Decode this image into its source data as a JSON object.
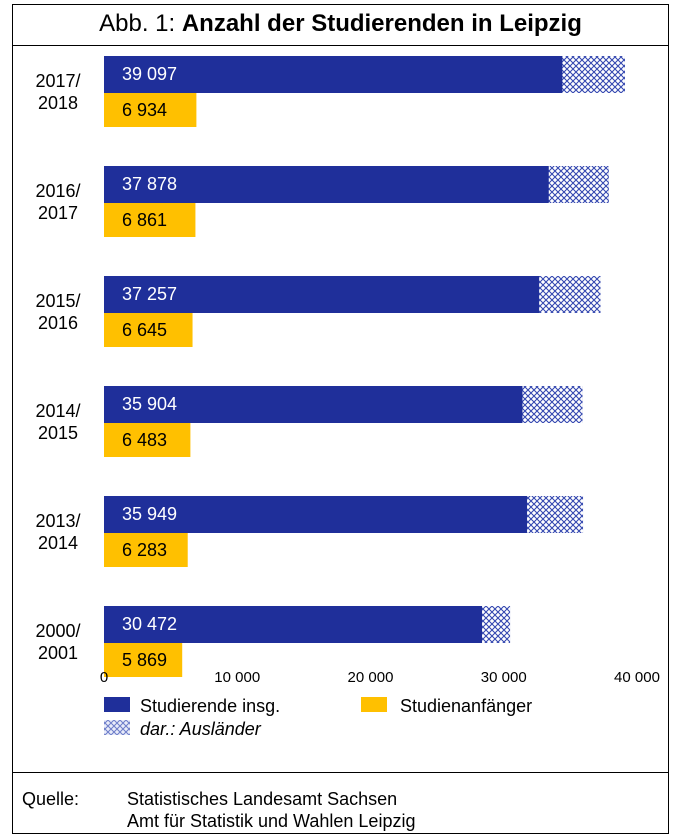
{
  "title": {
    "prefix": "Abb. 1: ",
    "main": "Anzahl der Studierenden in Leipzig"
  },
  "chart_data": {
    "type": "bar",
    "orientation": "horizontal",
    "categories": [
      [
        "2017/",
        "2018"
      ],
      [
        "2016/",
        "2017"
      ],
      [
        "2015/",
        "2016"
      ],
      [
        "2014/",
        "2015"
      ],
      [
        "2013/",
        "2014"
      ],
      [
        "2000/",
        "2001"
      ]
    ],
    "series": [
      {
        "name": "Studierende insg.",
        "values": [
          39097,
          37878,
          37257,
          35904,
          35949,
          30472
        ],
        "labels": [
          "39 097",
          "37 878",
          "37 257",
          "35 904",
          "35 949",
          "30 472"
        ],
        "color": "#1f2f9a"
      },
      {
        "name": "Studienanfänger",
        "values": [
          6934,
          6861,
          6645,
          6483,
          6283,
          5869
        ],
        "labels": [
          "6 934",
          "6 861",
          "6 645",
          "6 483",
          "6 283",
          "5 869"
        ],
        "color": "#ffc000"
      }
    ],
    "overlay": {
      "name": "dar.: Ausländer",
      "values": [
        4700,
        4500,
        4600,
        4500,
        4200,
        2100
      ],
      "color": "#c7d0f0"
    },
    "xlim": [
      0,
      40000
    ],
    "xticks": [
      0,
      10000,
      20000,
      30000,
      40000
    ],
    "xtick_labels": [
      "0",
      "10 000",
      "20 000",
      "30 000",
      "40 000"
    ],
    "grid": false,
    "legend_position": "bottom"
  },
  "source": {
    "label": "Quelle:",
    "lines": [
      "Statistisches Landesamt Sachsen",
      "Amt für Statistik und Wahlen Leipzig"
    ]
  }
}
